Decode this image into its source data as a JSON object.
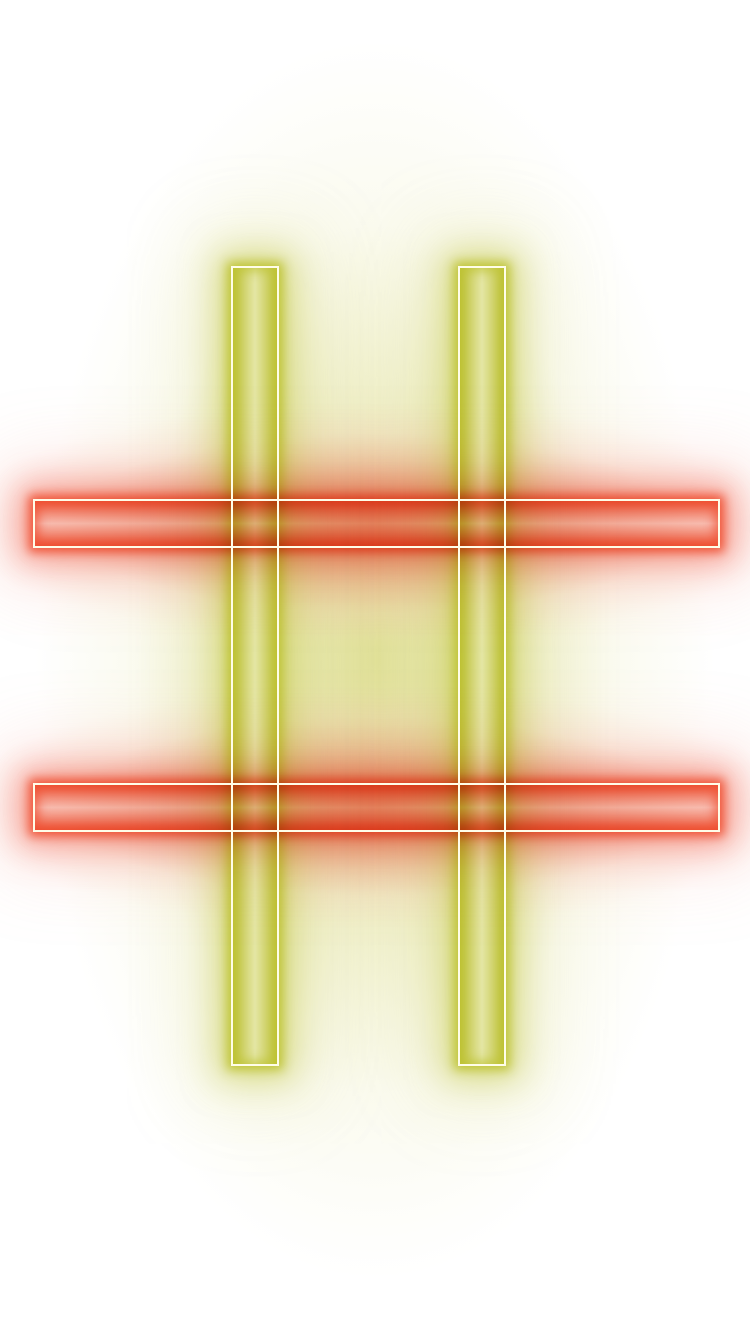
{
  "scene": {
    "subject": "neon-hash-symbol",
    "colors": {
      "background": "#ffffff",
      "vertical_bars": "#bfc23a",
      "horizontal_bars": "#ef5a3c",
      "tube_outline": "#fffbe8"
    }
  }
}
